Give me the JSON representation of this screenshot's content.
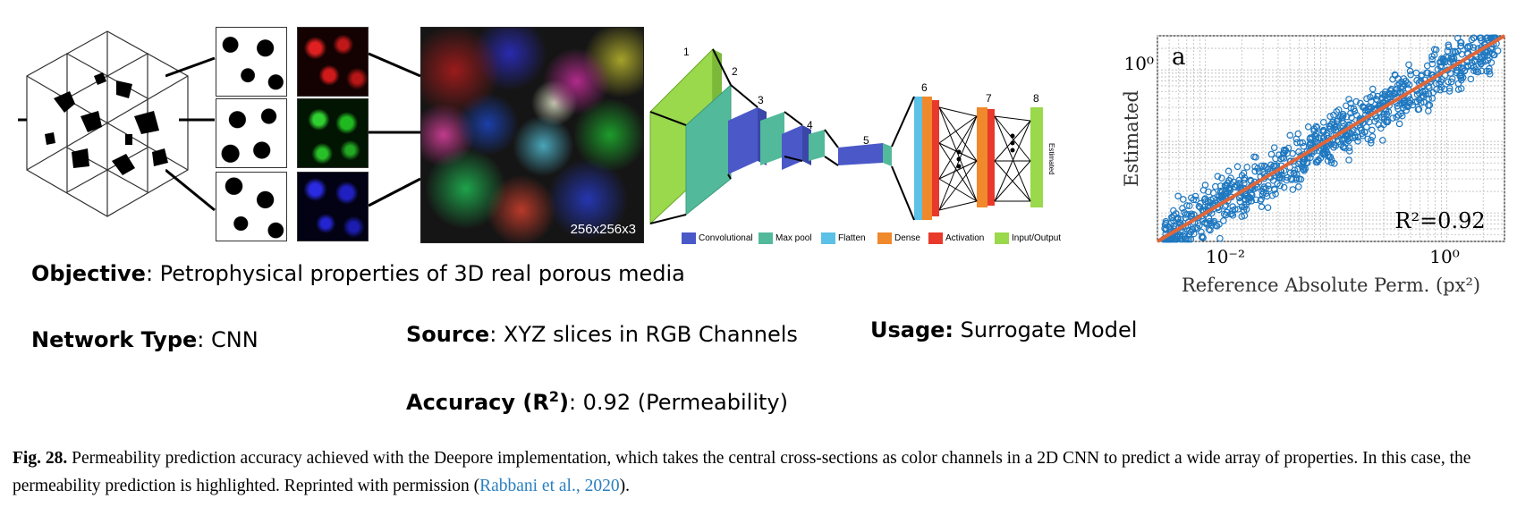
{
  "figure": {
    "rgb_size_label": "256x256x3",
    "cnn_layers": [
      "1",
      "2",
      "3",
      "4",
      "5",
      "6",
      "7",
      "8"
    ],
    "output_label": "Estimated",
    "legend": [
      {
        "label": "Convolutional",
        "color": "#4b58c8"
      },
      {
        "label": "Max pool",
        "color": "#52b99a"
      },
      {
        "label": "Flatten",
        "color": "#5bc1e6"
      },
      {
        "label": "Dense",
        "color": "#f0882c"
      },
      {
        "label": "Activation",
        "color": "#e8392a"
      },
      {
        "label": "Input/Output",
        "color": "#9ad84c"
      }
    ]
  },
  "chart_data": {
    "type": "scatter",
    "panel_label": "a",
    "ylabel": "Estimated",
    "xlabel": "Reference Absolute Perm. (px²)",
    "xscale": "log",
    "yscale": "log",
    "xlim": [
      0.004,
      3
    ],
    "ylim": [
      0.004,
      3
    ],
    "x_tick_labels": [
      "10⁻²",
      "10⁰"
    ],
    "y_tick_labels": [
      "10⁰"
    ],
    "grid": true,
    "annotation": "R²=0.92",
    "fit_line": {
      "color": "#e0663a",
      "x": [
        0.004,
        3
      ],
      "y": [
        0.004,
        3
      ]
    },
    "marker_color": "#1f78c0",
    "points_note": ""
  },
  "specs": {
    "objective_label": "Objective",
    "objective_value": ": Petrophysical properties of 3D real porous media",
    "network_label": "Network Type",
    "network_value": ": CNN",
    "source_label": "Source",
    "source_value": ": XYZ slices in RGB Channels",
    "usage_label": "Usage:",
    "usage_value": " Surrogate Model",
    "accuracy_label": "Accuracy (R",
    "accuracy_sup": "2",
    "accuracy_close": ")",
    "accuracy_value": ": 0.92 (Permeability)"
  },
  "caption": {
    "fig_label": "Fig. 28.",
    "text_before": "  Permeability prediction accuracy achieved with the Deepore implementation, which takes the central cross-sections as color channels in a 2D CNN to predict a wide array of properties. In this case, the permeability prediction is highlighted. Reprinted with permission (",
    "citation": "Rabbani et al., 2020",
    "text_after": ")."
  }
}
